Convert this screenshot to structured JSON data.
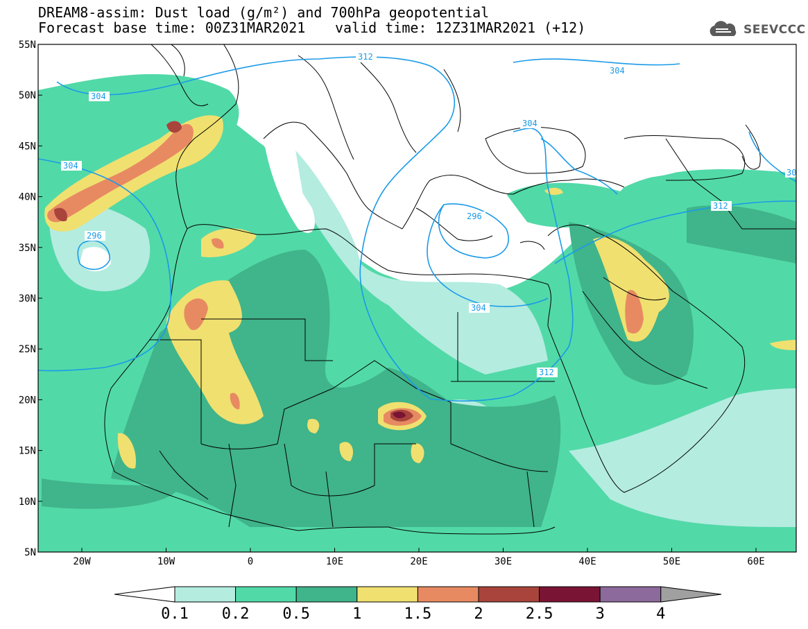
{
  "header": {
    "line1": "DREAM8-assim: Dust load (g/m²) and 700hPa geopotential",
    "line2": "Forecast base time: 00Z31MAR2021",
    "valid": "valid time: 12Z31MAR2021 (+12)",
    "logo_text": "SEEVCCC"
  },
  "map": {
    "lat_labels": [
      "55N",
      "50N",
      "45N",
      "40N",
      "35N",
      "30N",
      "25N",
      "20N",
      "15N",
      "10N",
      "5N"
    ],
    "lon_labels": [
      "20W",
      "10W",
      "0",
      "10E",
      "20E",
      "30E",
      "40E",
      "50E",
      "60E"
    ],
    "contour_labels": [
      "312",
      "304",
      "304",
      "304",
      "296",
      "296",
      "304",
      "304",
      "312",
      "312",
      "30"
    ]
  },
  "colorbar": {
    "labels": [
      "0.1",
      "0.2",
      "0.5",
      "1",
      "1.5",
      "2",
      "2.5",
      "3",
      "4"
    ],
    "colors": [
      "#b4ece0",
      "#52d9a8",
      "#40b48a",
      "#f0e070",
      "#e78a62",
      "#a8443c",
      "#7a1434",
      "#8c6a9c"
    ],
    "under_color": "#ffffff",
    "over_color": "#a0a0a0"
  },
  "colors": {
    "land": "#ffffff",
    "contour": "#1a9ae8",
    "border": "#000000"
  }
}
